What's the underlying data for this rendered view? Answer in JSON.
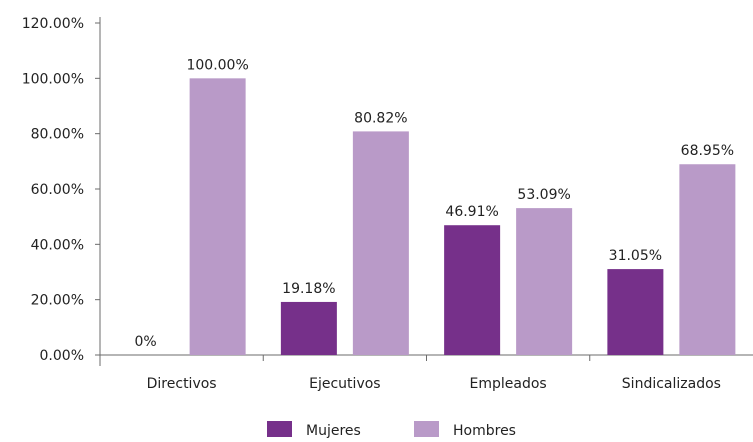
{
  "chart_data": {
    "type": "bar",
    "categories": [
      "Directivos",
      "Ejecutivos",
      "Empleados",
      "Sindicalizados"
    ],
    "series": [
      {
        "name": "Mujeres",
        "color": "#76308a",
        "values": [
          0,
          19.18,
          46.91,
          31.05
        ],
        "labels": [
          "0%",
          "19.18%",
          "46.91%",
          "31.05%"
        ]
      },
      {
        "name": "Hombres",
        "color": "#b99ac8",
        "values": [
          100,
          80.82,
          53.09,
          68.95
        ],
        "labels": [
          "100.00%",
          "80.82%",
          "53.09%",
          "68.95%"
        ]
      }
    ],
    "yticks": [
      "0.00%",
      "20.00%",
      "40.00%",
      "60.00%",
      "80.00%",
      "100.00%",
      "120.00%"
    ],
    "ylim": [
      0,
      120
    ],
    "grid": false,
    "legend_position": "bottom",
    "title": "",
    "xlabel": "",
    "ylabel": ""
  }
}
